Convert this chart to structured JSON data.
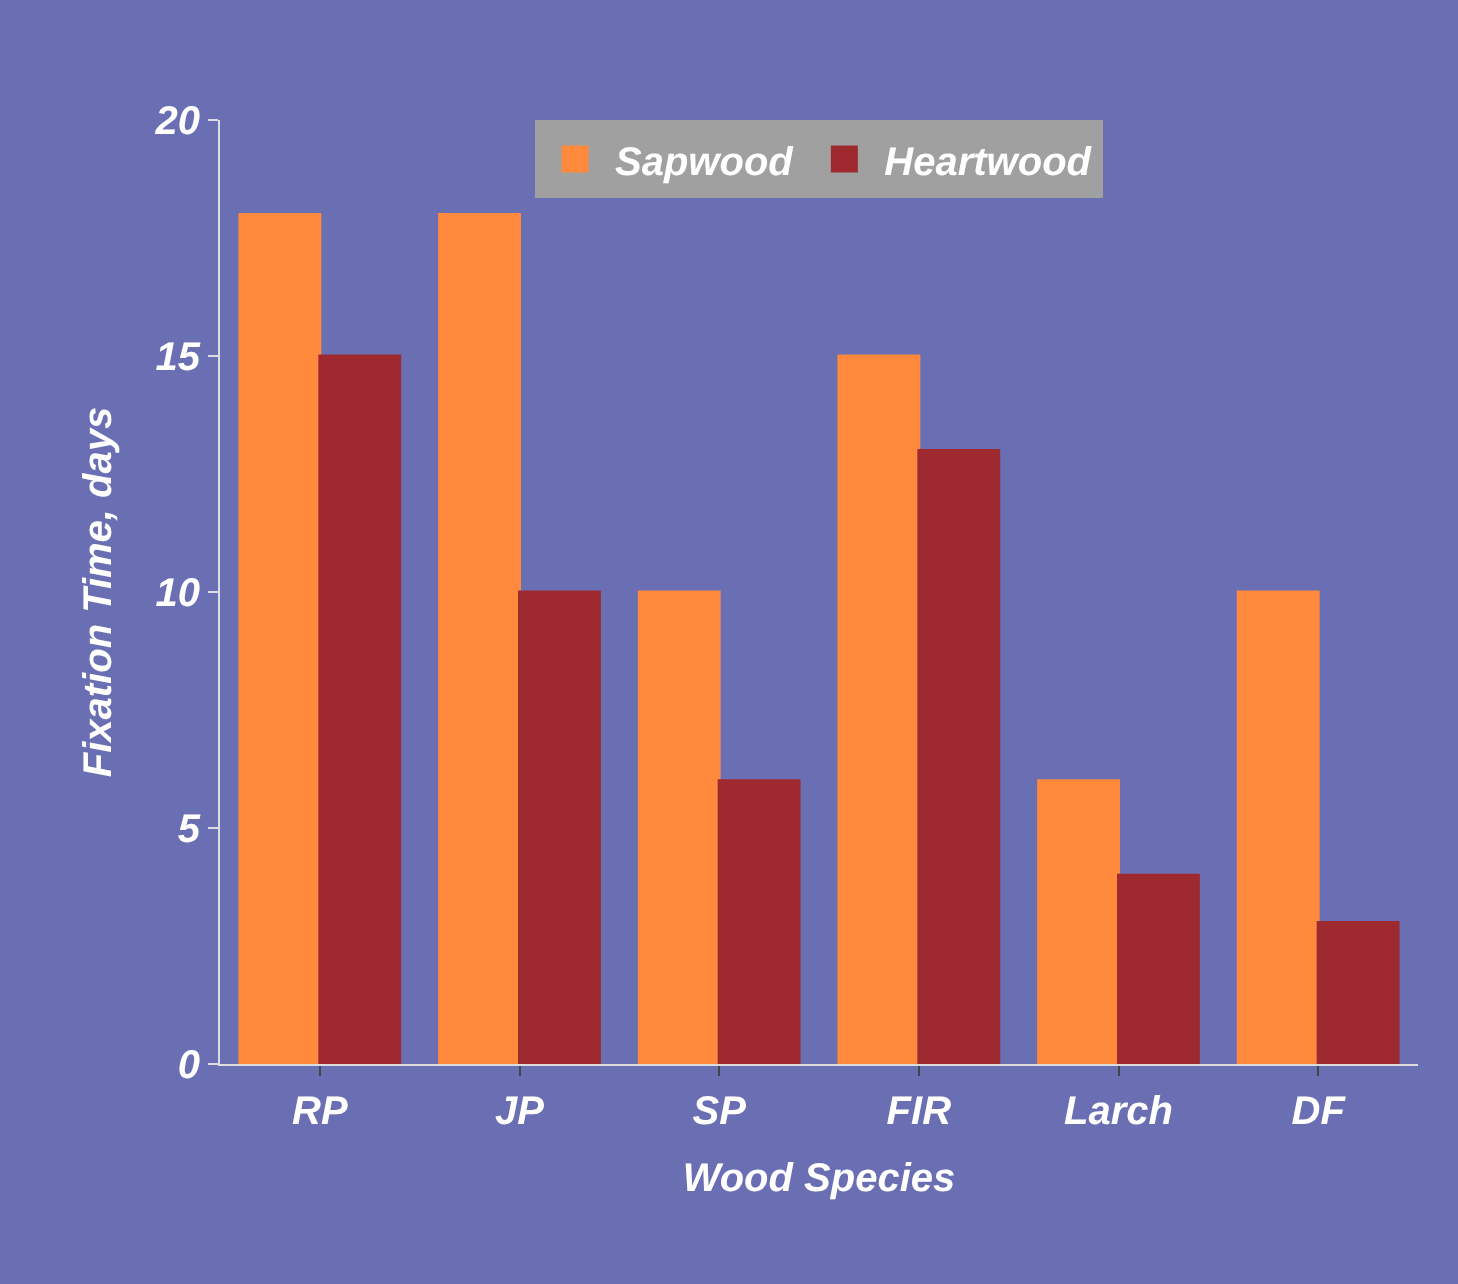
{
  "chart_data": {
    "type": "bar",
    "xlabel": "Wood Species",
    "ylabel": "Fixation Time, days",
    "categories": [
      "RP",
      "JP",
      "SP",
      "FIR",
      "Larch",
      "DF"
    ],
    "series": [
      {
        "name": "Sapwood",
        "color": "#ff8a3d",
        "values": [
          18,
          18,
          10,
          15,
          6,
          10
        ]
      },
      {
        "name": "Heartwood",
        "color": "#9e2a2f",
        "values": [
          15,
          10,
          6,
          13,
          4,
          3
        ]
      }
    ],
    "ylim": [
      0,
      20
    ],
    "yticks": [
      0,
      5,
      10,
      15,
      20
    ],
    "grid": false,
    "legend": "top"
  }
}
